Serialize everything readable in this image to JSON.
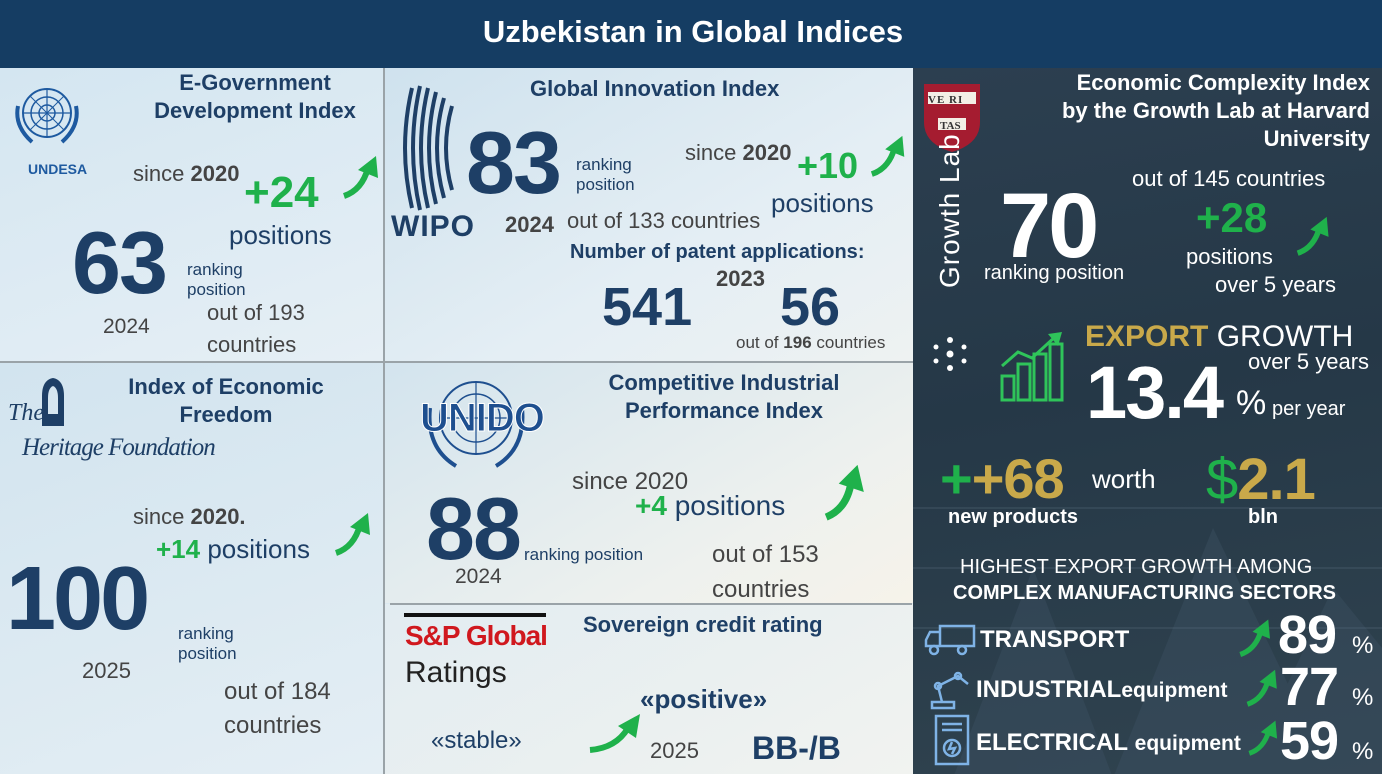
{
  "header": {
    "title": "Uzbekistan in Global Indices"
  },
  "colors": {
    "navy": "#1e3f66",
    "green": "#1fb14b",
    "gold": "#c9a94a",
    "header_bg": "#153d63",
    "dark_panel": "#2a3c4c"
  },
  "egov": {
    "logo_label": "UNDESA",
    "title_line1": "E-Government",
    "title_line2": "Development Index",
    "since_label": "since",
    "since_year": "2020",
    "change": "+24",
    "change_unit": "positions",
    "rank": "63",
    "rank_label_line1": "ranking",
    "rank_label_line2": "position",
    "year": "2024",
    "out_of_label": "out of",
    "out_of_value": "193",
    "out_of_unit": "countries"
  },
  "wipo": {
    "logo_label": "WIPO",
    "title": "Global Innovation Index",
    "rank": "83",
    "rank_label_line1": "ranking",
    "rank_label_line2": "position",
    "since_label": "since",
    "since_year": "2020",
    "change": "+10",
    "change_unit": "positions",
    "year": "2024",
    "out_of_label": "out of",
    "out_of_value": "133",
    "out_of_unit": "countries",
    "patent_title": "Number of patent applications",
    "patent_colon": ":",
    "patent_year": "2023",
    "patent_count": "541",
    "patent_rank": "56",
    "patent_out_of_label": "out of",
    "patent_out_of_value": "196",
    "patent_out_of_unit": "countries"
  },
  "heritage": {
    "logo_line1": "The",
    "logo_line2": "Heritage Foundation",
    "title_line1": "Index of Economic",
    "title_line2": "Freedom",
    "since_label": "since",
    "since_year": "2020.",
    "change": "+14",
    "change_unit": "positions",
    "rank": "100",
    "rank_label_line1": "ranking",
    "rank_label_line2": "position",
    "year": "2025",
    "out_of_label": "out of",
    "out_of_value": "184",
    "out_of_unit": "countries"
  },
  "unido": {
    "logo_label": "UNIDO",
    "title_line1": "Competitive Industrial",
    "title_line2": "Performance Index",
    "since_label": "since",
    "since_year": "2020",
    "change": "+4",
    "change_unit": "positions",
    "rank": "88",
    "rank_label": "ranking position",
    "year": "2024",
    "out_of_label": "out of",
    "out_of_value": "153",
    "out_of_unit": "countries"
  },
  "sp": {
    "logo_line1": "S&P Global",
    "logo_line2": "Ratings",
    "title": "Sovereign credit rating",
    "previous": "«stable»",
    "current": "«positive»",
    "year": "2025",
    "rating": "BB-/B"
  },
  "harvard": {
    "shield_top": "VE RI",
    "shield_bottom": "TAS",
    "vertical_brand": "Growth Lab",
    "title_line1": "Economic Complexity Index",
    "title_line2": "by the Growth Lab at Harvard",
    "title_line3": "University",
    "rank": "70",
    "rank_label": "ranking position",
    "out_of_label": "out of",
    "out_of_value": "145",
    "out_of_unit": "countries",
    "change": "+28",
    "change_unit": "positions",
    "change_period": "over 5 years",
    "export_word1": "EXPORT",
    "export_word2": "GROWTH",
    "export_period": "over 5 years",
    "export_value": "13.4",
    "export_percent": "%",
    "export_per": "per year",
    "new_products_value": "+68",
    "new_products_label": "new products",
    "worth_label": "worth",
    "worth_currency": "$",
    "worth_value": "2.1",
    "worth_unit": "bln",
    "sectors_title_line1": "HIGHEST EXPORT GROWTH AMONG",
    "sectors_title_line2": "COMPLEX MANUFACTURING SECTORS",
    "sectors": [
      {
        "name": "TRANSPORT",
        "suffix": "",
        "value": "89",
        "percent": "%",
        "icon": "truck-icon"
      },
      {
        "name": "INDUSTRIAL",
        "suffix": "equipment",
        "value": "77",
        "percent": "%",
        "icon": "robot-arm-icon"
      },
      {
        "name": "ELECTRICAL",
        "suffix": "equipment",
        "value": "59",
        "percent": "%",
        "icon": "electrical-panel-icon"
      }
    ]
  }
}
